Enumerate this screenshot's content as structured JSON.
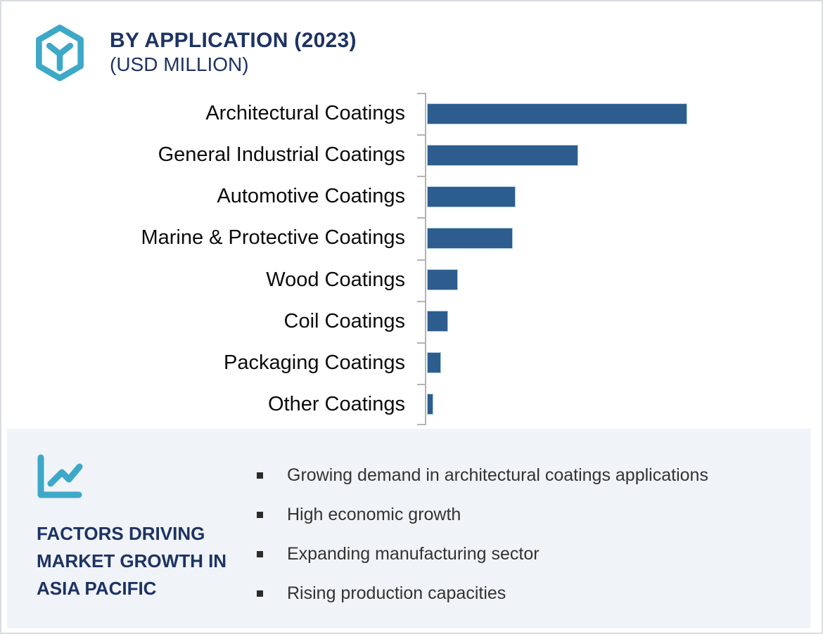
{
  "header": {
    "title": "BY APPLICATION (2023)",
    "subtitle": "(USD MILLION)",
    "icon": "hexagon-cube-icon"
  },
  "chart_data": {
    "type": "bar",
    "orientation": "horizontal",
    "title": "BY APPLICATION (2023) (USD MILLION)",
    "categories": [
      "Architectural Coatings",
      "General Industrial Coatings",
      "Automotive Coatings",
      "Marine & Protective Coatings",
      "Wood Coatings",
      "Coil Coatings",
      "Packaging Coatings",
      "Other Coatings"
    ],
    "values_relative_pct_of_max": [
      100,
      58.1,
      34.1,
      33.0,
      11.9,
      8.1,
      5.4,
      2.4
    ],
    "value_labels_shown": false,
    "axis_numbers_shown": false,
    "xlabel": "",
    "ylabel": "",
    "grid": false,
    "legend": false,
    "bar_color": "#2d5d8e",
    "axis_color": "#b3b3b3"
  },
  "panel": {
    "icon": "line-chart-icon",
    "heading": "FACTORS DRIVING MARKET GROWTH IN ASIA PACIFIC",
    "bullets": [
      "Growing demand in architectural coatings applications",
      "High economic growth",
      "Expanding manufacturing sector",
      "Rising production capacities"
    ]
  },
  "colors": {
    "accent_teal": "#3da8c7",
    "navy": "#1d3362",
    "bar_blue": "#2d5d8e",
    "panel_background": "#f0f3f8",
    "bullet_text": "#333333"
  }
}
